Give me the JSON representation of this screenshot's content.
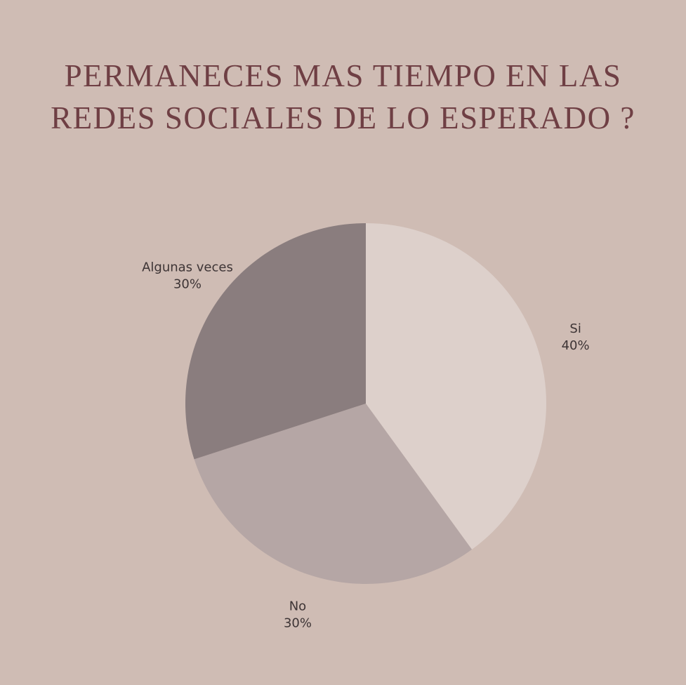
{
  "title_lines": [
    "PERMANECES MAS TIEMPO EN LAS",
    "REDES SOCIALES DE LO ESPERADO ?"
  ],
  "colors": {
    "background": "#cfbcb4",
    "title": "#6f3f44",
    "label": "#3d3435"
  },
  "chart_data": {
    "type": "pie",
    "title": "PERMANECES MAS TIEMPO EN LAS REDES SOCIALES DE LO ESPERADO ?",
    "start_angle_deg": 0,
    "direction": "clockwise",
    "slices": [
      {
        "label": "Si",
        "value": 40,
        "value_label": "40%",
        "color": "#ddd0cb"
      },
      {
        "label": "No",
        "value": 30,
        "value_label": "30%",
        "color": "#b5a6a5"
      },
      {
        "label": "Algunas veces",
        "value": 30,
        "value_label": "30%",
        "color": "#8a7d7e"
      }
    ]
  }
}
